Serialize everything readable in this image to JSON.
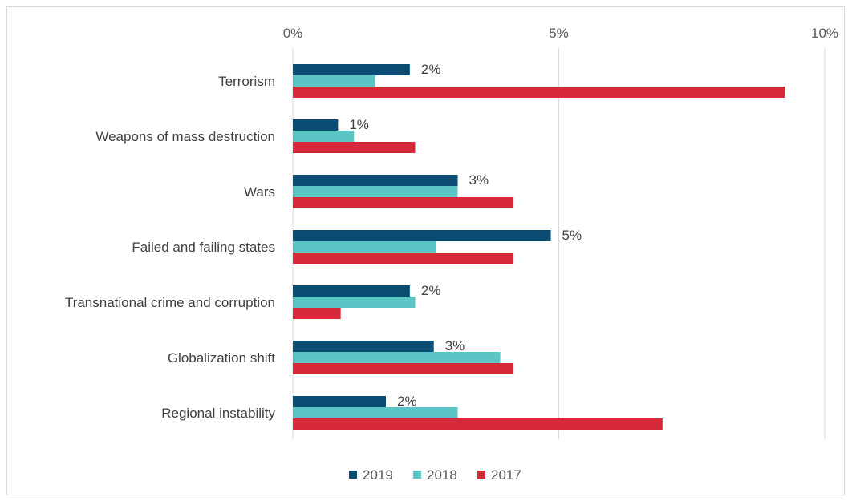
{
  "chart_data": {
    "type": "bar",
    "orientation": "horizontal",
    "categories": [
      "Terrorism",
      "Weapons of mass destruction",
      "Wars",
      "Failed and failing states",
      "Transnational crime and corruption",
      "Globalization shift",
      "Regional instability"
    ],
    "series": [
      {
        "name": "2019",
        "color": "#0b4d72",
        "values": [
          2.2,
          0.85,
          3.1,
          4.85,
          2.2,
          2.65,
          1.75
        ],
        "labels": [
          "2%",
          "1%",
          "3%",
          "5%",
          "2%",
          "3%",
          "2%"
        ]
      },
      {
        "name": "2018",
        "color": "#5bc4c4",
        "values": [
          1.55,
          1.15,
          3.1,
          2.7,
          2.3,
          3.9,
          3.1
        ]
      },
      {
        "name": "2017",
        "color": "#d7283a",
        "values": [
          9.25,
          2.3,
          4.15,
          4.15,
          0.9,
          4.15,
          6.95
        ]
      }
    ],
    "xlim": [
      0,
      10
    ],
    "xticks": [
      0,
      5,
      10
    ],
    "xtick_labels": [
      "0%",
      "5%",
      "10%"
    ],
    "x_axis_position": "top",
    "grid": true,
    "legend": "bottom",
    "title": "",
    "xlabel": "",
    "ylabel": ""
  }
}
